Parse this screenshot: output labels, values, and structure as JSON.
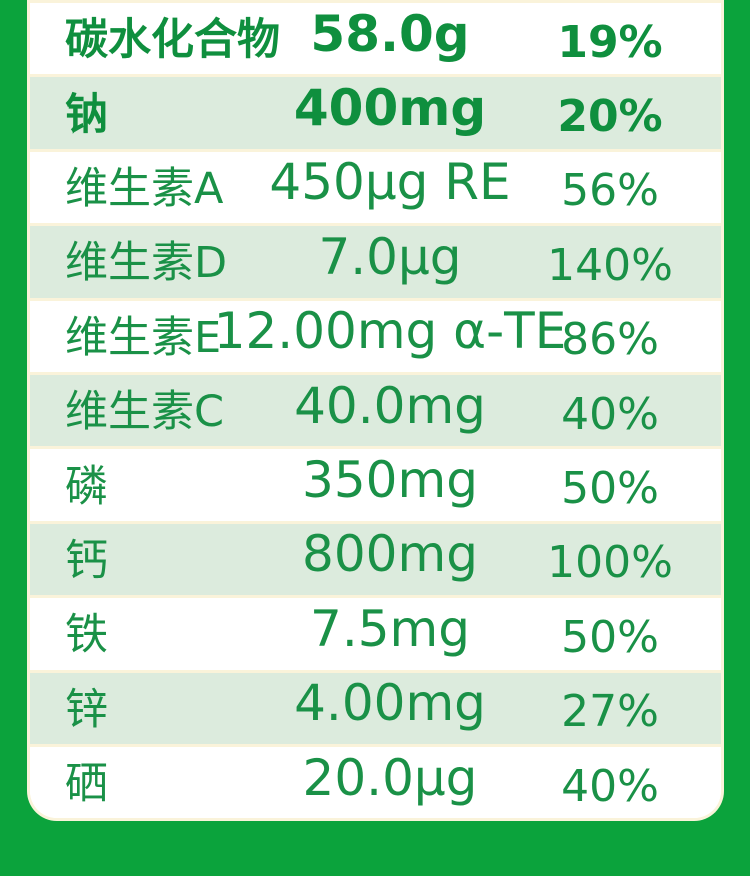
{
  "colors": {
    "background_green": "#0ba33c",
    "row_tint_green": "#dcebdd",
    "row_white": "#ffffff",
    "separator_cream": "#faf3da",
    "text_green": "#1a9147",
    "text_green_bold": "#0f8f3e"
  },
  "table": {
    "rows": [
      {
        "name": "碳水化合物",
        "amount": "58.0g",
        "percent": "19%",
        "emphasis": true
      },
      {
        "name": "钠",
        "amount": "400mg",
        "percent": "20%",
        "emphasis": true
      },
      {
        "name": "维生素A",
        "amount": "450μg RE",
        "percent": "56%",
        "emphasis": false
      },
      {
        "name": "维生素D",
        "amount": "7.0μg",
        "percent": "140%",
        "emphasis": false
      },
      {
        "name": "维生素E",
        "amount": "12.00mg α-TE",
        "percent": "86%",
        "emphasis": false
      },
      {
        "name": "维生素C",
        "amount": "40.0mg",
        "percent": "40%",
        "emphasis": false
      },
      {
        "name": "磷",
        "amount": "350mg",
        "percent": "50%",
        "emphasis": false
      },
      {
        "name": "钙",
        "amount": "800mg",
        "percent": "100%",
        "emphasis": false
      },
      {
        "name": "铁",
        "amount": "7.5mg",
        "percent": "50%",
        "emphasis": false
      },
      {
        "name": "锌",
        "amount": "4.00mg",
        "percent": "27%",
        "emphasis": false
      },
      {
        "name": "硒",
        "amount": "20.0μg",
        "percent": "40%",
        "emphasis": false
      }
    ]
  }
}
